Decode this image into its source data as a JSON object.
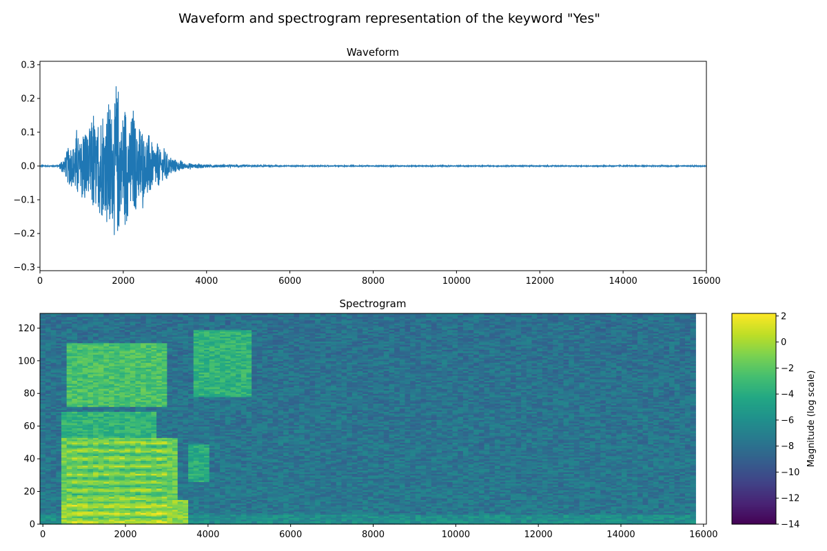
{
  "suptitle": "Waveform and spectrogram representation of the keyword \"Yes\"",
  "colors": {
    "waveform": "#1f77b4",
    "axis": "#000000"
  },
  "chart_data": [
    {
      "type": "line",
      "title": "Waveform",
      "xlabel": "",
      "ylabel": "",
      "xlim": [
        0,
        16000
      ],
      "ylim": [
        -0.31,
        0.31
      ],
      "xticks": [
        0,
        2000,
        4000,
        6000,
        8000,
        10000,
        12000,
        14000,
        16000
      ],
      "yticks": [
        -0.3,
        -0.2,
        -0.1,
        0.0,
        0.1,
        0.2,
        0.3
      ],
      "ytick_labels": [
        "−0.3",
        "−0.2",
        "−0.1",
        "0.0",
        "0.1",
        "0.2",
        "0.3"
      ],
      "num_samples": 16000,
      "envelope": [
        {
          "x": 0,
          "amp": 0.002
        },
        {
          "x": 450,
          "amp": 0.003
        },
        {
          "x": 600,
          "amp": 0.05
        },
        {
          "x": 900,
          "amp": 0.12
        },
        {
          "x": 1200,
          "amp": 0.17
        },
        {
          "x": 1500,
          "amp": 0.2
        },
        {
          "x": 1800,
          "amp": 0.28
        },
        {
          "x": 2100,
          "amp": 0.22
        },
        {
          "x": 2500,
          "amp": 0.14
        },
        {
          "x": 2900,
          "amp": 0.07
        },
        {
          "x": 3200,
          "amp": 0.03
        },
        {
          "x": 3500,
          "amp": 0.012
        },
        {
          "x": 4000,
          "amp": 0.006
        },
        {
          "x": 5000,
          "amp": 0.004
        },
        {
          "x": 6000,
          "amp": 0.002
        },
        {
          "x": 16000,
          "amp": 0.002
        }
      ],
      "grid": false,
      "legend": "none"
    },
    {
      "type": "heatmap",
      "title": "Spectrogram",
      "xlabel": "",
      "ylabel": "",
      "xlim": [
        -70,
        16070
      ],
      "ylim": [
        0,
        129
      ],
      "xticks": [
        0,
        2000,
        4000,
        6000,
        8000,
        10000,
        12000,
        14000,
        16000
      ],
      "yticks": [
        0,
        20,
        40,
        60,
        80,
        100,
        120
      ],
      "time_frames": 124,
      "freq_bins": 129,
      "frame_step": 128,
      "colorbar": {
        "label": "Magnitude (log scale)",
        "range": [
          -14,
          2.2
        ],
        "ticks": [
          -14,
          -12,
          -10,
          -8,
          -6,
          -4,
          -2,
          0,
          2
        ],
        "tick_labels": [
          "−14",
          "−12",
          "−10",
          "−8",
          "−6",
          "−4",
          "−2",
          "0",
          "2"
        ],
        "colormap": "viridis"
      },
      "energy_regions": [
        {
          "x0": 450,
          "x1": 3500,
          "y0": 0,
          "y1": 14,
          "level": -0.5
        },
        {
          "x0": 450,
          "x1": 3200,
          "y0": 14,
          "y1": 52,
          "level": -1.5
        },
        {
          "x0": 450,
          "x1": 2700,
          "y0": 52,
          "y1": 68,
          "level": -3.5
        },
        {
          "x0": 550,
          "x1": 2950,
          "y0": 72,
          "y1": 110,
          "level": -2.5
        },
        {
          "x0": 3600,
          "x1": 5000,
          "y0": 78,
          "y1": 118,
          "level": -3.5
        },
        {
          "x0": 3500,
          "x1": 4000,
          "y0": 26,
          "y1": 48,
          "level": -4
        }
      ],
      "background_level": -7.5,
      "grid": false
    }
  ]
}
